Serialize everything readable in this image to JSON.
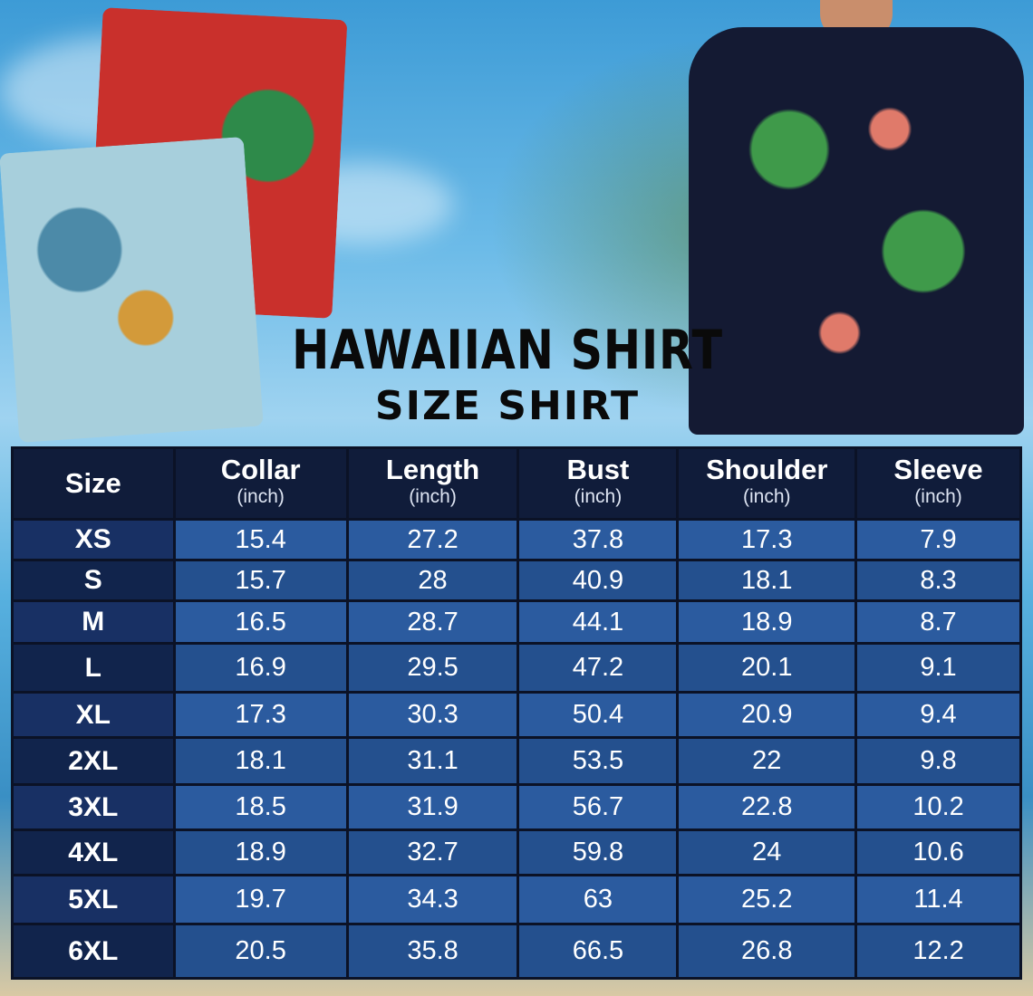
{
  "title": "HAWAIIAN SHIRT",
  "subtitle": "SIZE SHIRT",
  "colors": {
    "header": "#101c3a",
    "size_col": "#183064",
    "cell": "#2b5b9f"
  },
  "table": {
    "columns": [
      {
        "label": "Size",
        "unit": ""
      },
      {
        "label": "Collar",
        "unit": "(inch)"
      },
      {
        "label": "Length",
        "unit": "(inch)"
      },
      {
        "label": "Bust",
        "unit": "(inch)"
      },
      {
        "label": "Shoulder",
        "unit": "(inch)"
      },
      {
        "label": "Sleeve",
        "unit": "(inch)"
      }
    ],
    "rows": [
      [
        "XS",
        "15.4",
        "27.2",
        "37.8",
        "17.3",
        "7.9"
      ],
      [
        "S",
        "15.7",
        "28",
        "40.9",
        "18.1",
        "8.3"
      ],
      [
        "M",
        "16.5",
        "28.7",
        "44.1",
        "18.9",
        "8.7"
      ],
      [
        "L",
        "16.9",
        "29.5",
        "47.2",
        "20.1",
        "9.1"
      ],
      [
        "XL",
        "17.3",
        "30.3",
        "50.4",
        "20.9",
        "9.4"
      ],
      [
        "2XL",
        "18.1",
        "31.1",
        "53.5",
        "22",
        "9.8"
      ],
      [
        "3XL",
        "18.5",
        "31.9",
        "56.7",
        "22.8",
        "10.2"
      ],
      [
        "4XL",
        "18.9",
        "32.7",
        "59.8",
        "24",
        "10.6"
      ],
      [
        "5XL",
        "19.7",
        "34.3",
        "63",
        "25.2",
        "11.4"
      ],
      [
        "6XL",
        "20.5",
        "35.8",
        "66.5",
        "26.8",
        "12.2"
      ]
    ]
  }
}
